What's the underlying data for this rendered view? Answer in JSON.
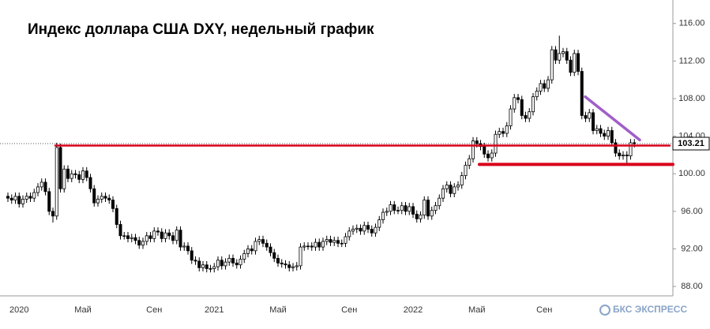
{
  "chart_data": {
    "type": "candlestick",
    "title": "Индекс доллара США DXY, недельный график",
    "logo": "БКС ЭКСПРЕСС",
    "categories": [
      null,
      null,
      null,
      "2020",
      null,
      null,
      null,
      null,
      null,
      null,
      null,
      null,
      null,
      null,
      null,
      null,
      null,
      null,
      null,
      null,
      "Май",
      null,
      null,
      null,
      null,
      null,
      null,
      null,
      null,
      null,
      null,
      null,
      null,
      null,
      null,
      null,
      null,
      null,
      null,
      "Сен",
      null,
      null,
      null,
      null,
      null,
      null,
      null,
      null,
      null,
      null,
      null,
      null,
      null,
      null,
      null,
      "2021",
      null,
      null,
      null,
      null,
      null,
      null,
      null,
      null,
      null,
      null,
      null,
      null,
      null,
      null,
      null,
      null,
      "Май",
      null,
      null,
      null,
      null,
      null,
      null,
      null,
      null,
      null,
      null,
      null,
      null,
      null,
      null,
      null,
      null,
      null,
      null,
      "Сен",
      null,
      null,
      null,
      null,
      null,
      null,
      null,
      null,
      null,
      null,
      null,
      null,
      null,
      null,
      null,
      null,
      "2022",
      null,
      null,
      null,
      null,
      null,
      null,
      null,
      null,
      null,
      null,
      null,
      null,
      null,
      null,
      null,
      null,
      "Май",
      null,
      null,
      null,
      null,
      null,
      null,
      null,
      null,
      null,
      null,
      null,
      null,
      null,
      null,
      null,
      null,
      null,
      "Сен",
      null,
      null,
      null,
      null,
      null,
      null,
      null,
      null,
      null,
      null,
      null,
      null,
      null,
      null,
      null,
      null,
      null,
      null,
      null,
      null,
      null,
      null,
      null,
      null
    ],
    "open": [
      97.6,
      97.4,
      97.2,
      97.6,
      96.8,
      97.3,
      97.6,
      97.4,
      98.0,
      98.6,
      99.1,
      98.1,
      96.0,
      95.5,
      102.8,
      98.4,
      100.5,
      99.5,
      100.0,
      99.9,
      99.4,
      100.3,
      99.6,
      98.4,
      96.9,
      97.3,
      97.6,
      97.4,
      97.2,
      96.3,
      94.6,
      93.4,
      93.4,
      93.1,
      93.2,
      92.9,
      92.4,
      92.8,
      93.4,
      93.1,
      93.9,
      93.8,
      93.1,
      93.7,
      93.4,
      92.9,
      94.0,
      92.2,
      92.3,
      91.8,
      90.8,
      90.7,
      90.0,
      90.3,
      89.9,
      89.9,
      90.1,
      90.8,
      90.2,
      90.6,
      91.0,
      90.5,
      90.3,
      90.9,
      91.5,
      92.0,
      91.8,
      92.8,
      93.0,
      92.6,
      92.2,
      91.6,
      91.0,
      90.5,
      90.4,
      90.3,
      90.0,
      90.1,
      90.2,
      92.2,
      92.3,
      92.3,
      92.2,
      92.7,
      92.2,
      92.8,
      93.0,
      92.7,
      92.9,
      92.6,
      92.6,
      93.3,
      93.9,
      94.1,
      94.2,
      93.9,
      94.5,
      94.1,
      93.7,
      94.3,
      95.1,
      95.9,
      96.0,
      96.7,
      96.1,
      96.1,
      96.6,
      96.0,
      96.5,
      95.7,
      95.2,
      95.6,
      97.2,
      95.5,
      96.1,
      96.6,
      97.4,
      98.4,
      98.8,
      97.9,
      98.6,
      98.8,
      99.8,
      100.9,
      101.6,
      103.5,
      103.2,
      102.9,
      102.1,
      101.7,
      102.2,
      104.2,
      104.5,
      104.3,
      105.1,
      106.9,
      108.1,
      107.9,
      106.2,
      105.9,
      106.6,
      108.2,
      108.8,
      109.6,
      109.1,
      110.0,
      113.2,
      112.1,
      112.8,
      113.0,
      112.1,
      110.8,
      112.8,
      110.9,
      106.2,
      105.9,
      106.5,
      104.6,
      104.8,
      104.3,
      104.0,
      104.6,
      103.3,
      102.2,
      101.9,
      102.0,
      101.9,
      103.3
    ],
    "high": [
      98.0,
      97.8,
      98.0,
      98.0,
      97.7,
      98.0,
      98.0,
      98.4,
      99.0,
      99.5,
      99.5,
      98.5,
      96.4,
      103.3,
      103.2,
      100.9,
      100.9,
      100.4,
      100.4,
      100.3,
      100.7,
      100.7,
      100.0,
      98.8,
      97.7,
      98.0,
      98.0,
      97.8,
      97.6,
      96.7,
      95.0,
      93.8,
      93.8,
      93.6,
      93.6,
      93.3,
      93.2,
      93.8,
      93.8,
      94.3,
      94.3,
      94.2,
      94.1,
      94.1,
      93.8,
      94.4,
      94.4,
      92.7,
      92.7,
      92.2,
      91.2,
      91.1,
      90.7,
      90.7,
      90.3,
      90.5,
      91.2,
      91.2,
      91.0,
      91.4,
      91.4,
      90.9,
      91.3,
      91.9,
      92.4,
      92.4,
      93.2,
      93.4,
      93.4,
      93.0,
      92.6,
      92.0,
      91.4,
      90.9,
      90.8,
      90.7,
      90.5,
      90.6,
      92.6,
      92.7,
      92.7,
      92.7,
      93.1,
      93.1,
      93.2,
      93.4,
      93.4,
      93.3,
      93.3,
      93.0,
      93.7,
      94.3,
      94.5,
      94.6,
      94.6,
      94.9,
      94.9,
      94.5,
      94.7,
      95.5,
      96.3,
      96.4,
      97.1,
      97.1,
      96.5,
      97.0,
      97.0,
      96.9,
      96.9,
      96.1,
      96.0,
      97.6,
      97.6,
      96.5,
      97.0,
      97.8,
      98.8,
      99.2,
      99.2,
      99.0,
      99.2,
      100.2,
      101.3,
      102.0,
      103.9,
      103.9,
      103.6,
      103.3,
      102.5,
      102.6,
      104.6,
      104.9,
      104.9,
      105.5,
      107.3,
      108.5,
      108.5,
      108.3,
      106.6,
      107.0,
      108.6,
      109.2,
      110.0,
      110.0,
      110.4,
      113.6,
      113.6,
      114.7,
      113.4,
      113.4,
      112.5,
      113.2,
      113.2,
      111.3,
      106.6,
      106.9,
      106.9,
      105.2,
      105.2,
      104.7,
      105.0,
      105.0,
      103.7,
      102.6,
      102.4,
      102.4,
      103.7,
      103.7
    ],
    "low": [
      97.0,
      96.8,
      96.8,
      96.4,
      96.4,
      96.9,
      97.0,
      97.0,
      97.6,
      98.2,
      97.7,
      95.6,
      94.8,
      95.1,
      98.0,
      98.0,
      99.1,
      99.1,
      99.5,
      99.0,
      99.0,
      99.2,
      98.0,
      96.5,
      96.5,
      96.9,
      97.0,
      96.8,
      95.9,
      94.2,
      93.0,
      93.0,
      92.7,
      92.7,
      92.5,
      92.0,
      92.0,
      92.4,
      92.7,
      92.7,
      93.4,
      92.7,
      92.7,
      93.0,
      92.5,
      92.5,
      91.8,
      91.8,
      91.4,
      90.4,
      90.3,
      89.6,
      89.6,
      89.5,
      89.5,
      89.5,
      89.7,
      89.8,
      89.8,
      90.2,
      90.1,
      89.9,
      89.9,
      90.5,
      91.1,
      91.4,
      91.4,
      92.4,
      92.2,
      91.8,
      91.2,
      90.6,
      90.1,
      90.0,
      89.9,
      89.6,
      89.6,
      89.7,
      89.8,
      91.8,
      91.9,
      91.8,
      91.8,
      91.8,
      91.8,
      92.4,
      92.3,
      92.3,
      92.2,
      92.2,
      92.2,
      92.9,
      93.5,
      93.7,
      93.5,
      93.5,
      93.7,
      93.3,
      93.3,
      93.9,
      94.7,
      95.5,
      95.6,
      95.7,
      95.7,
      95.7,
      95.6,
      95.6,
      95.3,
      94.8,
      94.8,
      95.2,
      95.1,
      95.1,
      95.7,
      96.2,
      97.0,
      98.0,
      97.5,
      97.5,
      98.2,
      98.4,
      99.4,
      100.5,
      101.2,
      102.8,
      102.5,
      101.7,
      101.3,
      101.3,
      101.8,
      103.8,
      103.9,
      103.9,
      104.7,
      106.5,
      107.5,
      105.8,
      105.5,
      105.5,
      106.2,
      107.8,
      108.4,
      108.7,
      108.7,
      109.6,
      111.7,
      111.7,
      112.4,
      111.7,
      110.4,
      110.4,
      110.5,
      105.8,
      105.5,
      105.5,
      104.2,
      104.2,
      103.9,
      103.6,
      103.6,
      102.9,
      101.8,
      101.5,
      101.5,
      101.0,
      101.5,
      102.8
    ],
    "close": [
      97.4,
      97.2,
      97.6,
      96.8,
      97.3,
      97.6,
      97.4,
      98.0,
      98.6,
      99.1,
      98.1,
      96.0,
      95.5,
      102.8,
      98.4,
      100.5,
      99.5,
      100.0,
      99.9,
      99.4,
      100.3,
      99.6,
      98.4,
      96.9,
      97.3,
      97.6,
      97.4,
      97.2,
      96.3,
      94.6,
      93.4,
      93.4,
      93.1,
      93.2,
      92.9,
      92.4,
      92.8,
      93.4,
      93.1,
      93.9,
      93.8,
      93.1,
      93.7,
      93.4,
      92.9,
      94.0,
      92.2,
      92.3,
      91.8,
      90.8,
      90.7,
      90.0,
      90.3,
      89.9,
      89.9,
      90.1,
      90.8,
      90.2,
      90.6,
      91.0,
      90.5,
      90.3,
      90.9,
      91.5,
      92.0,
      91.8,
      92.8,
      93.0,
      92.6,
      92.2,
      91.6,
      91.0,
      90.5,
      90.4,
      90.3,
      90.0,
      90.1,
      90.2,
      92.2,
      92.3,
      92.3,
      92.2,
      92.7,
      92.2,
      92.8,
      93.0,
      92.7,
      92.9,
      92.6,
      92.6,
      93.3,
      93.9,
      94.1,
      94.2,
      93.9,
      94.5,
      94.1,
      93.7,
      94.3,
      95.1,
      95.9,
      96.0,
      96.7,
      96.1,
      96.1,
      96.6,
      96.0,
      96.5,
      95.7,
      95.2,
      95.6,
      97.2,
      95.5,
      96.1,
      96.6,
      97.4,
      98.4,
      98.8,
      97.9,
      98.6,
      98.8,
      99.8,
      100.9,
      101.6,
      103.5,
      103.2,
      102.9,
      102.1,
      101.7,
      102.2,
      104.2,
      104.5,
      104.3,
      105.1,
      106.9,
      108.1,
      107.9,
      106.2,
      105.9,
      106.6,
      108.2,
      108.8,
      109.6,
      109.1,
      110.0,
      113.2,
      112.1,
      112.8,
      113.0,
      112.1,
      110.8,
      112.8,
      110.9,
      106.2,
      105.9,
      106.5,
      104.6,
      104.8,
      104.3,
      104.0,
      104.6,
      103.3,
      102.2,
      101.9,
      102.0,
      101.9,
      103.3,
      103.21
    ],
    "up_color": "#ffffff",
    "down_color": "#000000",
    "ylim": [
      87,
      118.5
    ],
    "yticks": [
      {
        "value": 88,
        "label": "88.00"
      },
      {
        "value": 92,
        "label": "92.00"
      },
      {
        "value": 96,
        "label": "96.00"
      },
      {
        "value": 100,
        "label": "100.00"
      },
      {
        "value": 104,
        "label": "104.00"
      },
      {
        "value": 108,
        "label": "108.00"
      },
      {
        "value": 112,
        "label": "112.00"
      },
      {
        "value": 116,
        "label": "116.00"
      }
    ],
    "hlines": [
      {
        "value": 103,
        "color": "#d9001b"
      },
      {
        "value": 101,
        "color": "#d9001b"
      }
    ],
    "trendline": {
      "values": [
        108.2,
        103.6
      ],
      "color": "#a05fc8"
    }
  }
}
